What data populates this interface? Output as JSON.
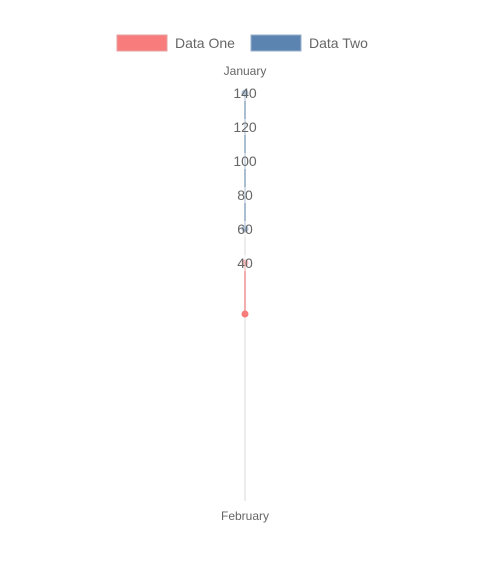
{
  "chart_data": {
    "type": "radar",
    "title": "",
    "categories": [
      "January",
      "February"
    ],
    "ticks": [
      40,
      60,
      80,
      100,
      120,
      140
    ],
    "r_range": [
      20,
      140
    ],
    "grid": true,
    "legend_position": "top",
    "series": [
      {
        "name": "Data One",
        "color": "#f87c7c",
        "values": [
          40,
          30
        ]
      },
      {
        "name": "Data Two",
        "color": "#5b84b1",
        "values": [
          140,
          -20
        ]
      }
    ]
  }
}
